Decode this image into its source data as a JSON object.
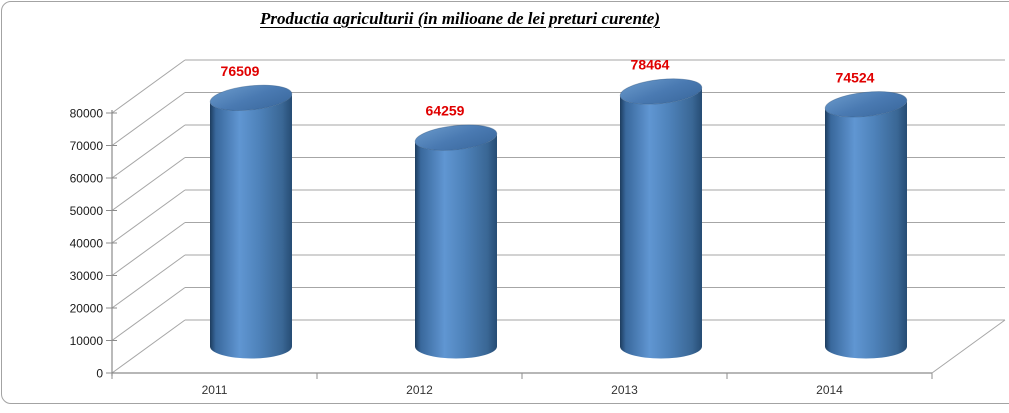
{
  "title": "Productia agriculturii (in milioane de lei preturi curente)",
  "chart_data": {
    "type": "bar",
    "subtype": "3d-cylinder",
    "title": "Productia agriculturii (in milioane de lei preturi curente)",
    "categories": [
      "2011",
      "2012",
      "2013",
      "2014"
    ],
    "values": [
      76509,
      64259,
      78464,
      74524
    ],
    "xlabel": "",
    "ylabel": "",
    "ylim": [
      0,
      80000
    ],
    "ytick_step": 10000,
    "ytick_labels": [
      "0",
      "10000",
      "20000",
      "30000",
      "40000",
      "50000",
      "60000",
      "70000",
      "80000"
    ],
    "grid": true,
    "legend": "none",
    "data_labels_shown": true,
    "colors": {
      "bar": "#4f81bd",
      "bar_dark": "#1d3c5e",
      "bar_light": "#6096d2",
      "bar_top": "#4a7ab2",
      "data_label": "#e00000",
      "gridline": "#a6a6a6",
      "axis": "#8c8c8c",
      "tick_label": "#1a1a1a",
      "category_label": "#333333",
      "frame_border": "#a3a3a3"
    }
  }
}
